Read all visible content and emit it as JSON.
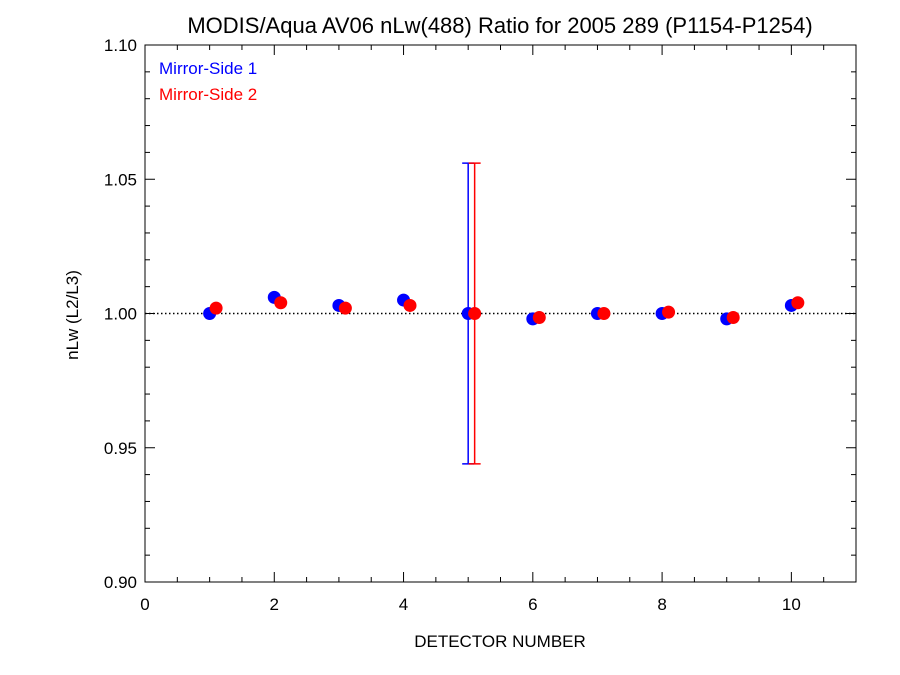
{
  "chart_data": {
    "type": "scatter",
    "title": "MODIS/Aqua AV06 nLw(488) Ratio for 2005 289 (P1154-P1254)",
    "xlabel": "DETECTOR NUMBER",
    "ylabel": "nLw (L2/L3)",
    "xlim": [
      0,
      11
    ],
    "ylim": [
      0.9,
      1.1
    ],
    "x_ticks": [
      0,
      2,
      4,
      6,
      8,
      10
    ],
    "x_tick_labels": [
      "0",
      "2",
      "4",
      "6",
      "8",
      "10"
    ],
    "y_ticks": [
      0.9,
      0.95,
      1.0,
      1.05,
      1.1
    ],
    "y_tick_labels": [
      "0.90",
      "0.95",
      "1.00",
      "1.05",
      "1.10"
    ],
    "reference_line": 1.0,
    "legend_position": "top-left",
    "series": [
      {
        "name": "Mirror-Side 1",
        "color": "#0000ff",
        "x": [
          1,
          2,
          3,
          4,
          5,
          6,
          7,
          8,
          9,
          10
        ],
        "values": [
          1.0,
          1.006,
          1.003,
          1.005,
          1.0,
          0.998,
          1.0,
          1.0,
          0.998,
          1.003
        ],
        "error_bars": [
          null,
          null,
          null,
          null,
          [
            0.944,
            1.056
          ],
          null,
          null,
          null,
          null,
          null
        ]
      },
      {
        "name": "Mirror-Side 2",
        "color": "#ff0000",
        "x": [
          1.1,
          2.1,
          3.1,
          4.1,
          5.1,
          6.1,
          7.1,
          8.1,
          9.1,
          10.1
        ],
        "values": [
          1.002,
          1.004,
          1.002,
          1.003,
          1.0,
          0.9985,
          1.0,
          1.0005,
          0.9985,
          1.004
        ],
        "error_bars": [
          null,
          null,
          null,
          null,
          [
            0.944,
            1.056
          ],
          null,
          null,
          null,
          null,
          null
        ]
      }
    ]
  }
}
